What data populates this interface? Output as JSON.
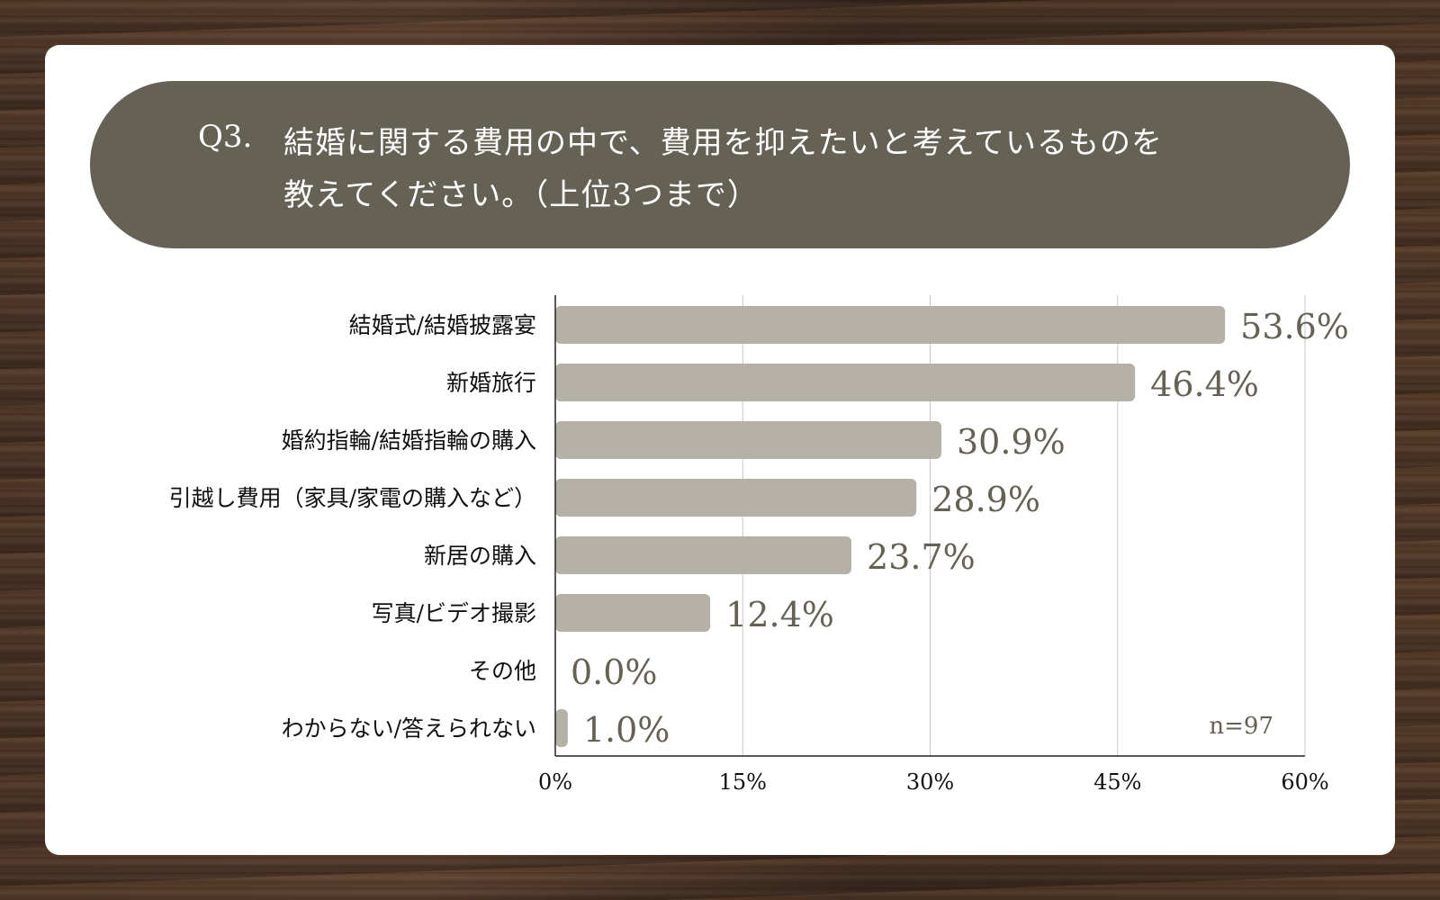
{
  "question": {
    "number": "Q3.",
    "line1": "結婚に関する費用の中で、費用を抑えたいと考えているものを",
    "line2": "教えてください。（上位3つまで）"
  },
  "colors": {
    "header_bg": "#666155",
    "bar": "#b5b1a6",
    "value_label": "#666155",
    "grid": "#c8c8c8",
    "axis": "#222222"
  },
  "chart_data": {
    "type": "bar",
    "orientation": "horizontal",
    "categories": [
      "結婚式/結婚披露宴",
      "新婚旅行",
      "婚約指輪/結婚指輪の購入",
      "引越し費用（家具/家電の購入など）",
      "新居の購入",
      "写真/ビデオ撮影",
      "その他",
      "わからない/答えられない"
    ],
    "values": [
      53.6,
      46.4,
      30.9,
      28.9,
      23.7,
      12.4,
      0.0,
      1.0
    ],
    "value_labels": [
      "53.6%",
      "46.4%",
      "30.9%",
      "28.9%",
      "23.7%",
      "12.4%",
      "0.0%",
      "1.0%"
    ],
    "xlim": [
      0,
      60
    ],
    "ticks": [
      0,
      15,
      30,
      45,
      60
    ],
    "tick_labels": [
      "0%",
      "15%",
      "30%",
      "45%",
      "60%"
    ],
    "sample_size": "n=97",
    "grid": true
  }
}
